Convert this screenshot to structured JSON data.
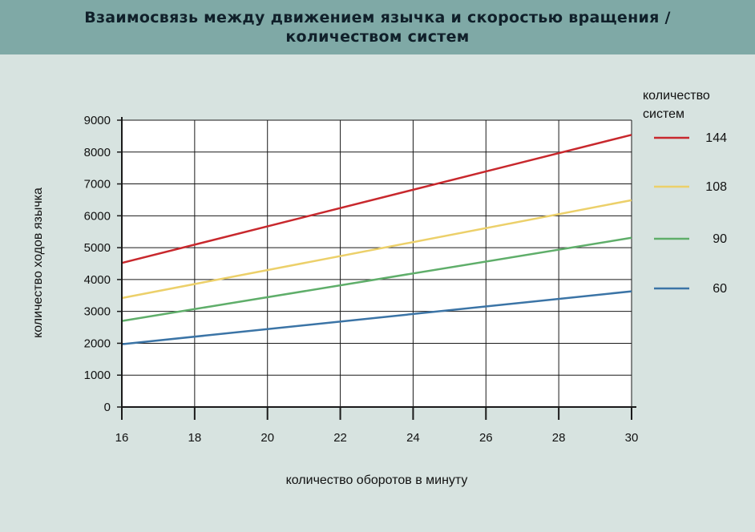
{
  "title": {
    "line1": "Взаимосвязь между движением язычка и скоростью вращения /",
    "line2": "количеством систем"
  },
  "chart_data": {
    "type": "line",
    "xlabel": "количество оборотов в минуту",
    "ylabel": "количество ходов язычка",
    "xlim": [
      16,
      30
    ],
    "ylim": [
      0,
      9000
    ],
    "x_ticks": [
      16,
      18,
      20,
      22,
      24,
      26,
      28,
      30
    ],
    "y_ticks": [
      0,
      1000,
      2000,
      3000,
      4000,
      5000,
      6000,
      7000,
      8000,
      9000
    ],
    "grid": true,
    "legend_title_line1": "количество",
    "legend_title_line2": "систем",
    "legend_position": "right",
    "series": [
      {
        "name": "144",
        "color": "#c8282d",
        "x": [
          16,
          30
        ],
        "y": [
          4520,
          8540
        ]
      },
      {
        "name": "108",
        "color": "#ecd06a",
        "x": [
          16,
          30
        ],
        "y": [
          3420,
          6490
        ]
      },
      {
        "name": "90",
        "color": "#5fae6a",
        "x": [
          16,
          30
        ],
        "y": [
          2700,
          5310
        ]
      },
      {
        "name": "60",
        "color": "#3b74a6",
        "x": [
          16,
          30
        ],
        "y": [
          1970,
          3630
        ]
      }
    ]
  }
}
